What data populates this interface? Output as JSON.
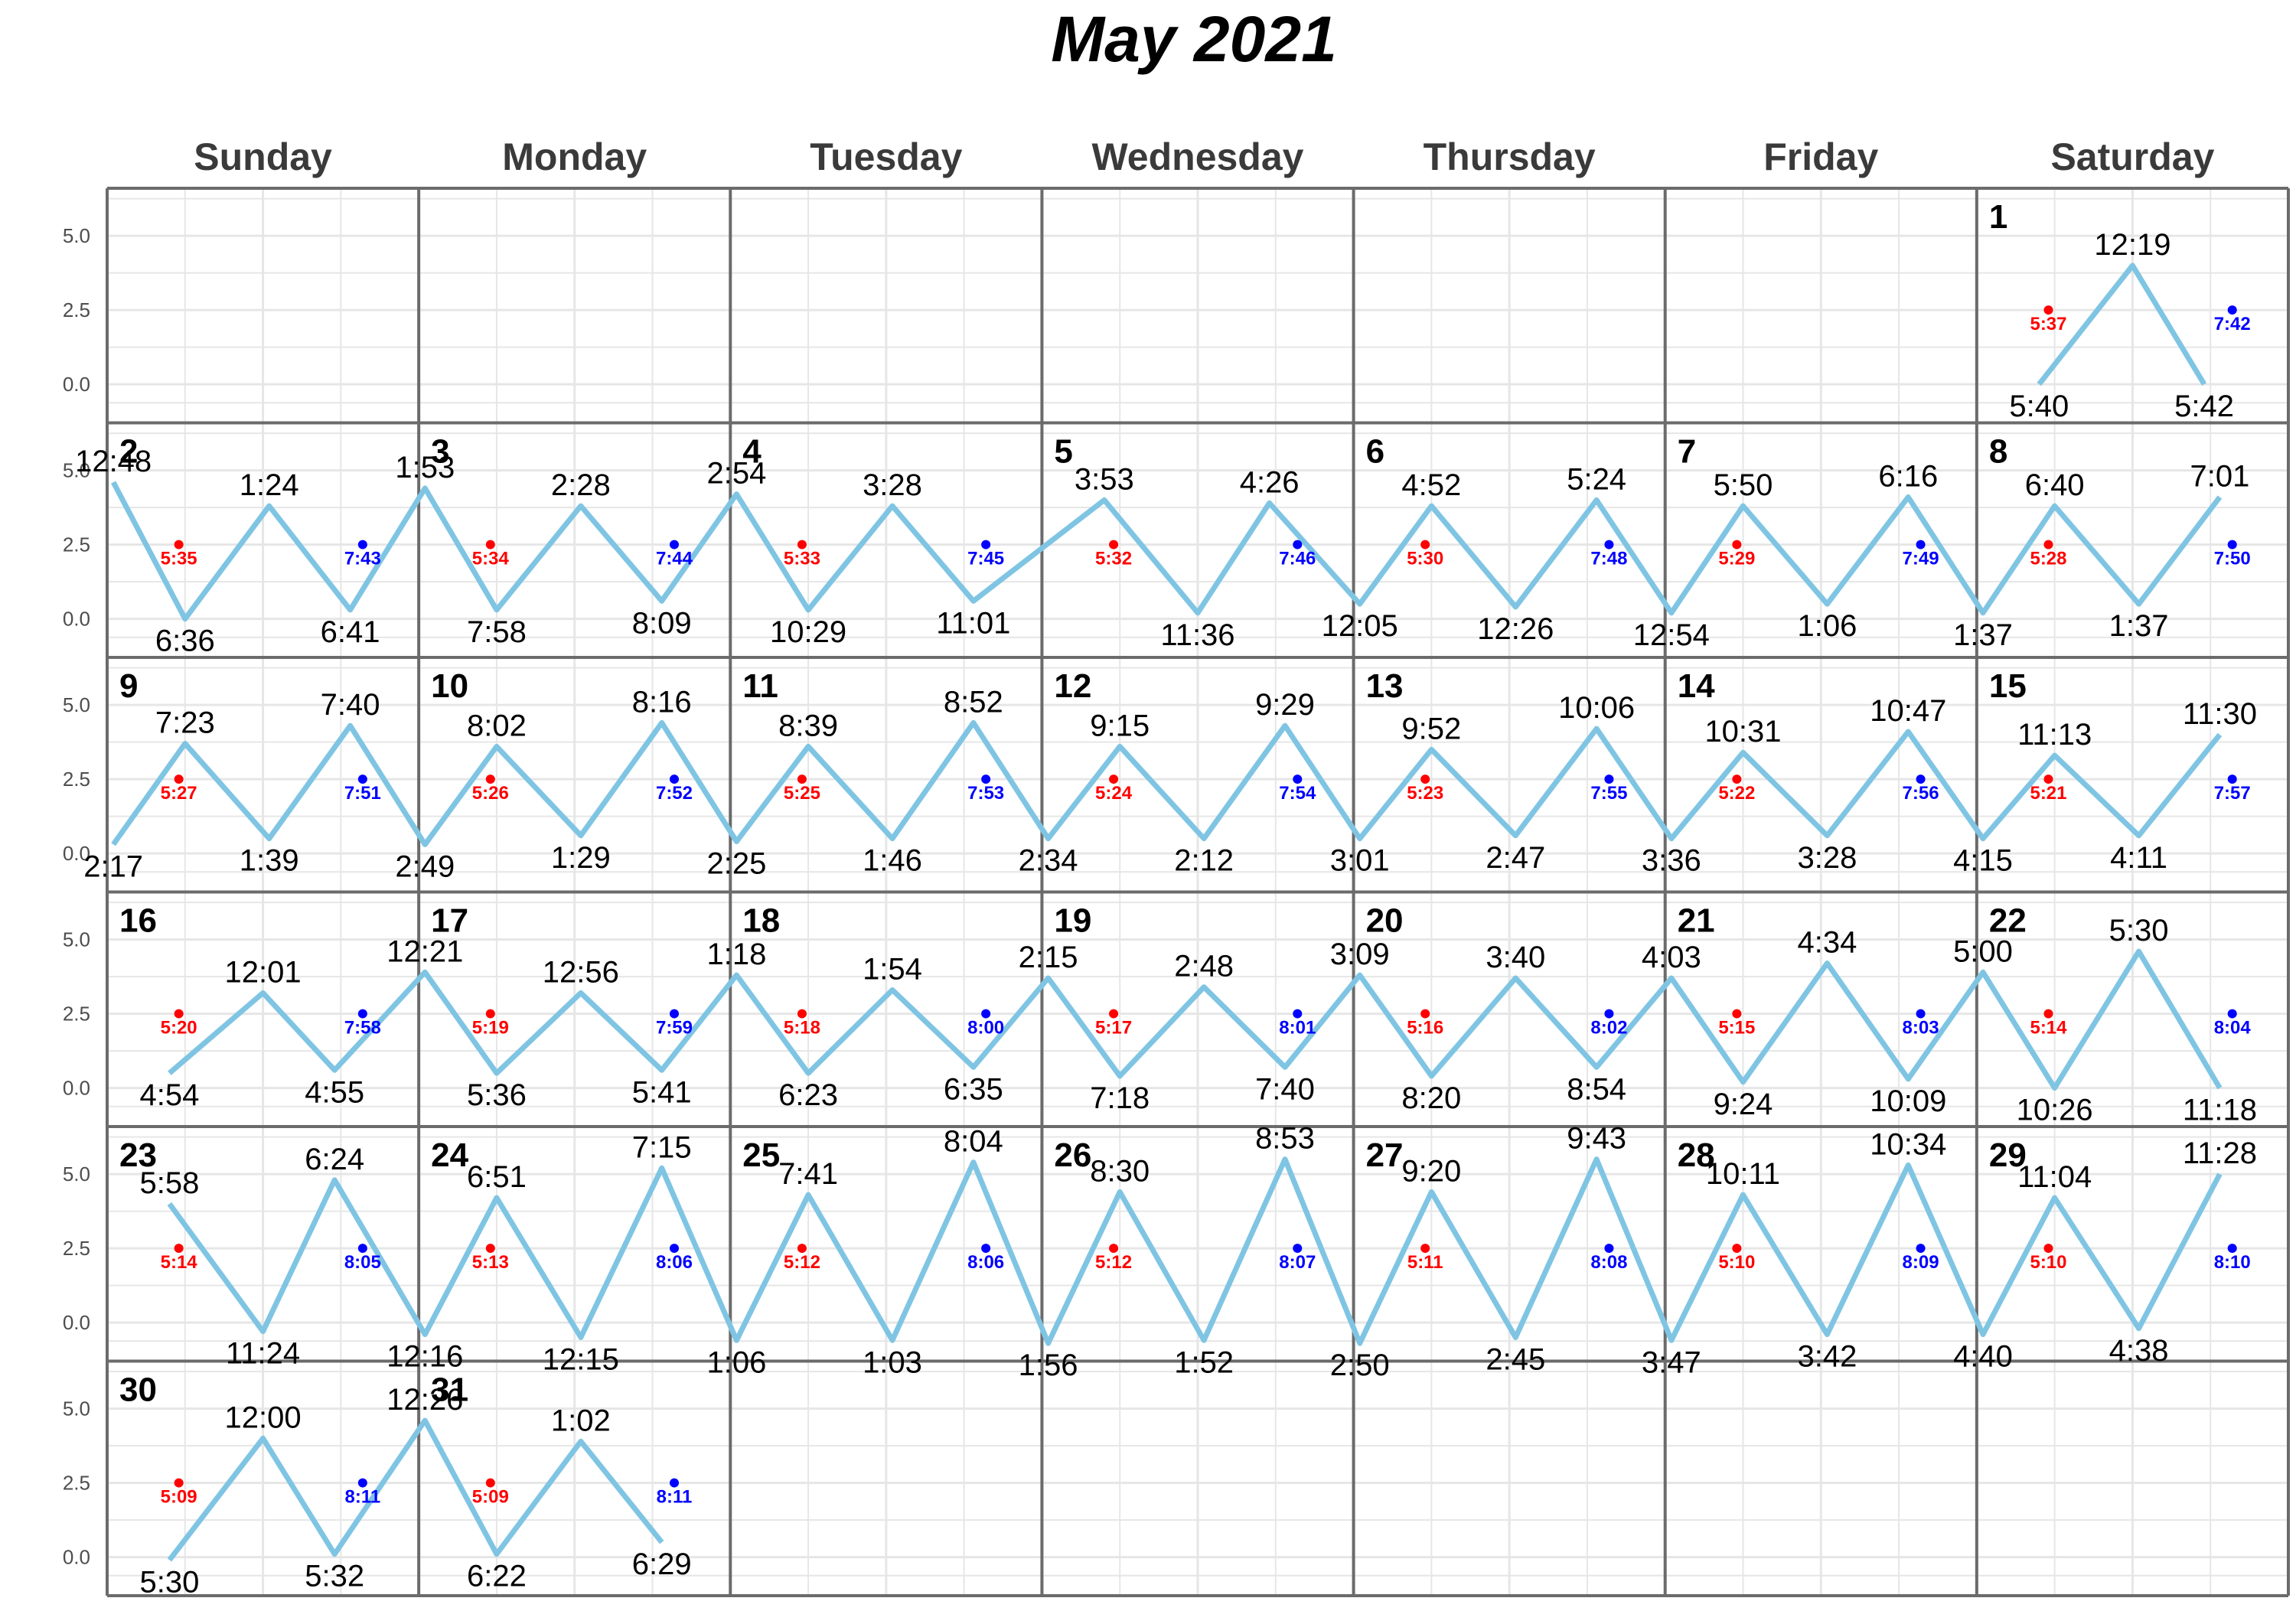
{
  "chart_data": {
    "type": "line",
    "title": "May 2021",
    "weekdays": [
      "Sunday",
      "Monday",
      "Tuesday",
      "Wednesday",
      "Thursday",
      "Friday",
      "Saturday"
    ],
    "yticks": [
      "0.0",
      "2.5",
      "5.0"
    ],
    "ylim": [
      -1.3,
      6.6
    ],
    "grid": true,
    "colors": {
      "tide_line": "#7fc5e3",
      "sunrise": "#ff0000",
      "sunset": "#0000ff",
      "grid": "#e6e6e6",
      "border": "#6b6b6b"
    },
    "days": [
      {
        "day": 1,
        "sunrise": "5:37",
        "sunset": "7:42",
        "tides": [
          {
            "t": "5:40",
            "h": 0.0
          },
          {
            "t": "12:19",
            "h": 4.0
          },
          {
            "t": "5:42",
            "h": 0.0
          }
        ]
      },
      {
        "day": 2,
        "sunrise": "5:35",
        "sunset": "7:43",
        "tides": [
          {
            "t": "12:48",
            "h": 4.6
          },
          {
            "t": "6:36",
            "h": 0.0
          },
          {
            "t": "1:24",
            "h": 3.8
          },
          {
            "t": "6:41",
            "h": 0.3
          }
        ]
      },
      {
        "day": 3,
        "sunrise": "5:34",
        "sunset": "7:44",
        "tides": [
          {
            "t": "1:53",
            "h": 4.4
          },
          {
            "t": "7:58",
            "h": 0.3
          },
          {
            "t": "2:28",
            "h": 3.8
          },
          {
            "t": "8:09",
            "h": 0.6
          }
        ]
      },
      {
        "day": 4,
        "sunrise": "5:33",
        "sunset": "7:45",
        "tides": [
          {
            "t": "2:54",
            "h": 4.2
          },
          {
            "t": "10:29",
            "h": 0.3
          },
          {
            "t": "3:28",
            "h": 3.8
          },
          {
            "t": "11:01",
            "h": 0.6
          }
        ]
      },
      {
        "day": 5,
        "sunrise": "5:32",
        "sunset": "7:46",
        "tides": [
          {
            "t": "3:53",
            "h": 4.0
          },
          {
            "t": "11:36",
            "h": 0.2
          },
          {
            "t": "4:26",
            "h": 3.9
          }
        ]
      },
      {
        "day": 6,
        "sunrise": "5:30",
        "sunset": "7:48",
        "tides": [
          {
            "t": "12:05",
            "h": 0.5
          },
          {
            "t": "4:52",
            "h": 3.8
          },
          {
            "t": "12:26",
            "h": 0.4
          },
          {
            "t": "5:24",
            "h": 4.0
          }
        ]
      },
      {
        "day": 7,
        "sunrise": "5:29",
        "sunset": "7:49",
        "tides": [
          {
            "t": "12:54",
            "h": 0.2
          },
          {
            "t": "5:50",
            "h": 3.8
          },
          {
            "t": "1:06",
            "h": 0.5
          },
          {
            "t": "6:16",
            "h": 4.1
          }
        ]
      },
      {
        "day": 8,
        "sunrise": "5:28",
        "sunset": "7:50",
        "tides": [
          {
            "t": "1:37",
            "h": 0.2
          },
          {
            "t": "6:40",
            "h": 3.8
          },
          {
            "t": "1:37",
            "h": 0.5
          },
          {
            "t": "7:01",
            "h": 4.1
          }
        ]
      },
      {
        "day": 9,
        "sunrise": "5:27",
        "sunset": "7:51",
        "tides": [
          {
            "t": "2:17",
            "h": 0.3
          },
          {
            "t": "7:23",
            "h": 3.7
          },
          {
            "t": "1:39",
            "h": 0.5
          },
          {
            "t": "7:40",
            "h": 4.3
          }
        ]
      },
      {
        "day": 10,
        "sunrise": "5:26",
        "sunset": "7:52",
        "tides": [
          {
            "t": "2:49",
            "h": 0.3
          },
          {
            "t": "8:02",
            "h": 3.6
          },
          {
            "t": "1:29",
            "h": 0.6
          },
          {
            "t": "8:16",
            "h": 4.4
          }
        ]
      },
      {
        "day": 11,
        "sunrise": "5:25",
        "sunset": "7:53",
        "tides": [
          {
            "t": "2:25",
            "h": 0.4
          },
          {
            "t": "8:39",
            "h": 3.6
          },
          {
            "t": "1:46",
            "h": 0.5
          },
          {
            "t": "8:52",
            "h": 4.4
          }
        ]
      },
      {
        "day": 12,
        "sunrise": "5:24",
        "sunset": "7:54",
        "tides": [
          {
            "t": "2:34",
            "h": 0.5
          },
          {
            "t": "9:15",
            "h": 3.6
          },
          {
            "t": "2:12",
            "h": 0.5
          },
          {
            "t": "9:29",
            "h": 4.3
          }
        ]
      },
      {
        "day": 13,
        "sunrise": "5:23",
        "sunset": "7:55",
        "tides": [
          {
            "t": "3:01",
            "h": 0.5
          },
          {
            "t": "9:52",
            "h": 3.5
          },
          {
            "t": "2:47",
            "h": 0.6
          },
          {
            "t": "10:06",
            "h": 4.2
          }
        ]
      },
      {
        "day": 14,
        "sunrise": "5:22",
        "sunset": "7:56",
        "tides": [
          {
            "t": "3:36",
            "h": 0.5
          },
          {
            "t": "10:31",
            "h": 3.4
          },
          {
            "t": "3:28",
            "h": 0.6
          },
          {
            "t": "10:47",
            "h": 4.1
          }
        ]
      },
      {
        "day": 15,
        "sunrise": "5:21",
        "sunset": "7:57",
        "tides": [
          {
            "t": "4:15",
            "h": 0.5
          },
          {
            "t": "11:13",
            "h": 3.3
          },
          {
            "t": "4:11",
            "h": 0.6
          },
          {
            "t": "11:30",
            "h": 4.0
          }
        ]
      },
      {
        "day": 16,
        "sunrise": "5:20",
        "sunset": "7:58",
        "tides": [
          {
            "t": "4:54",
            "h": 0.5
          },
          {
            "t": "12:01",
            "h": 3.2
          },
          {
            "t": "4:55",
            "h": 0.6
          }
        ]
      },
      {
        "day": 17,
        "sunrise": "5:19",
        "sunset": "7:59",
        "tides": [
          {
            "t": "12:21",
            "h": 3.9
          },
          {
            "t": "5:36",
            "h": 0.5
          },
          {
            "t": "12:56",
            "h": 3.2
          },
          {
            "t": "5:41",
            "h": 0.6
          }
        ]
      },
      {
        "day": 18,
        "sunrise": "5:18",
        "sunset": "8:00",
        "tides": [
          {
            "t": "1:18",
            "h": 3.8
          },
          {
            "t": "6:23",
            "h": 0.5
          },
          {
            "t": "1:54",
            "h": 3.3
          },
          {
            "t": "6:35",
            "h": 0.7
          }
        ]
      },
      {
        "day": 19,
        "sunrise": "5:17",
        "sunset": "8:01",
        "tides": [
          {
            "t": "2:15",
            "h": 3.7
          },
          {
            "t": "7:18",
            "h": 0.4
          },
          {
            "t": "2:48",
            "h": 3.4
          },
          {
            "t": "7:40",
            "h": 0.7
          }
        ]
      },
      {
        "day": 20,
        "sunrise": "5:16",
        "sunset": "8:02",
        "tides": [
          {
            "t": "3:09",
            "h": 3.8
          },
          {
            "t": "8:20",
            "h": 0.4
          },
          {
            "t": "3:40",
            "h": 3.7
          },
          {
            "t": "8:54",
            "h": 0.7
          }
        ]
      },
      {
        "day": 21,
        "sunrise": "5:15",
        "sunset": "8:03",
        "tides": [
          {
            "t": "4:03",
            "h": 3.7
          },
          {
            "t": "9:24",
            "h": 0.2
          },
          {
            "t": "4:34",
            "h": 4.2
          },
          {
            "t": "10:09",
            "h": 0.3
          }
        ]
      },
      {
        "day": 22,
        "sunrise": "5:14",
        "sunset": "8:04",
        "tides": [
          {
            "t": "5:00",
            "h": 3.9
          },
          {
            "t": "10:26",
            "h": 0.0
          },
          {
            "t": "5:30",
            "h": 4.6
          },
          {
            "t": "11:18",
            "h": 0.0
          }
        ]
      },
      {
        "day": 23,
        "sunrise": "5:14",
        "sunset": "8:05",
        "tides": [
          {
            "t": "5:58",
            "h": 4.0
          },
          {
            "t": "11:24",
            "h": -0.3
          },
          {
            "t": "6:24",
            "h": 4.8
          }
        ]
      },
      {
        "day": 24,
        "sunrise": "5:13",
        "sunset": "8:06",
        "tides": [
          {
            "t": "12:16",
            "h": -0.4
          },
          {
            "t": "6:51",
            "h": 4.2
          },
          {
            "t": "12:15",
            "h": -0.5
          },
          {
            "t": "7:15",
            "h": 5.2
          }
        ]
      },
      {
        "day": 25,
        "sunrise": "5:12",
        "sunset": "8:06",
        "tides": [
          {
            "t": "1:06",
            "h": -0.6
          },
          {
            "t": "7:41",
            "h": 4.3
          },
          {
            "t": "1:03",
            "h": -0.6
          },
          {
            "t": "8:04",
            "h": 5.4
          }
        ]
      },
      {
        "day": 26,
        "sunrise": "5:12",
        "sunset": "8:07",
        "tides": [
          {
            "t": "1:56",
            "h": -0.7
          },
          {
            "t": "8:30",
            "h": 4.4
          },
          {
            "t": "1:52",
            "h": -0.6
          },
          {
            "t": "8:53",
            "h": 5.5
          }
        ]
      },
      {
        "day": 27,
        "sunrise": "5:11",
        "sunset": "8:08",
        "tides": [
          {
            "t": "2:50",
            "h": -0.7
          },
          {
            "t": "9:20",
            "h": 4.4
          },
          {
            "t": "2:45",
            "h": -0.5
          },
          {
            "t": "9:43",
            "h": 5.5
          }
        ]
      },
      {
        "day": 28,
        "sunrise": "5:10",
        "sunset": "8:09",
        "tides": [
          {
            "t": "3:47",
            "h": -0.6
          },
          {
            "t": "10:11",
            "h": 4.3
          },
          {
            "t": "3:42",
            "h": -0.4
          },
          {
            "t": "10:34",
            "h": 5.3
          }
        ]
      },
      {
        "day": 29,
        "sunrise": "5:10",
        "sunset": "8:10",
        "tides": [
          {
            "t": "4:40",
            "h": -0.4
          },
          {
            "t": "11:04",
            "h": 4.2
          },
          {
            "t": "4:38",
            "h": -0.2
          },
          {
            "t": "11:28",
            "h": 5.0
          }
        ]
      },
      {
        "day": 30,
        "sunrise": "5:09",
        "sunset": "8:11",
        "tides": [
          {
            "t": "5:30",
            "h": -0.1
          },
          {
            "t": "12:00",
            "h": 4.0
          },
          {
            "t": "5:32",
            "h": 0.1
          }
        ]
      },
      {
        "day": 31,
        "sunrise": "5:09",
        "sunset": "8:11",
        "tides": [
          {
            "t": "12:26",
            "h": 4.6
          },
          {
            "t": "6:22",
            "h": 0.1
          },
          {
            "t": "1:02",
            "h": 3.9
          },
          {
            "t": "6:29",
            "h": 0.5
          }
        ]
      }
    ]
  }
}
